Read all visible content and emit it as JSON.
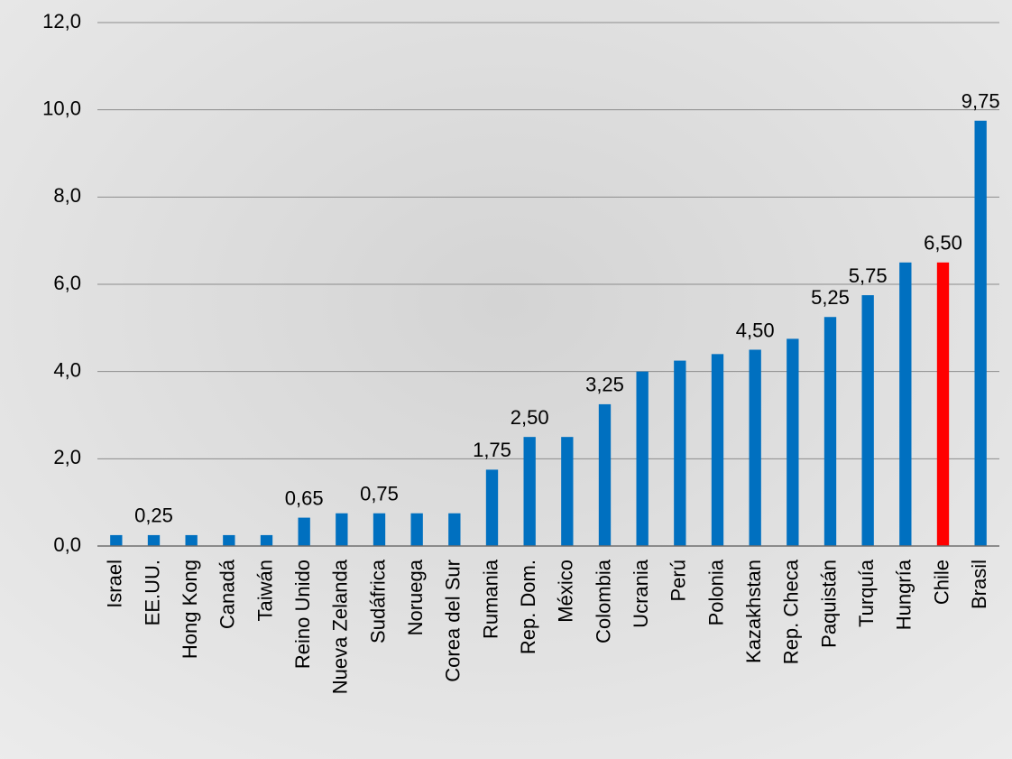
{
  "chart_data": {
    "type": "bar",
    "categories": [
      "Israel",
      "EE.UU.",
      "Hong Kong",
      "Canadá",
      "Taiwán",
      "Reino Unido",
      "Nueva Zelanda",
      "Sudáfrica",
      "Noruega",
      "Corea del Sur",
      "Rumania",
      "Rep. Dom.",
      "México",
      "Colombia",
      "Ucrania",
      "Perú",
      "Polonia",
      "Kazakhstan",
      "Rep. Checa",
      "Paquistán",
      "Turquía",
      "Hungría",
      "Chile",
      "Brasil"
    ],
    "values": [
      0.25,
      0.25,
      0.25,
      0.25,
      0.25,
      0.65,
      0.75,
      0.75,
      0.75,
      0.75,
      1.75,
      2.5,
      2.5,
      3.25,
      4.0,
      4.25,
      4.4,
      4.5,
      4.75,
      5.25,
      5.75,
      6.5,
      6.5,
      9.75
    ],
    "value_labels": [
      null,
      "0,25",
      null,
      null,
      null,
      "0,65",
      null,
      "0,75",
      null,
      null,
      "1,75",
      "2,50",
      null,
      "3,25",
      null,
      null,
      null,
      "4,50",
      null,
      "5,25",
      "5,75",
      null,
      "6,50",
      "9,75"
    ],
    "colors": [
      "#0070c0",
      "#0070c0",
      "#0070c0",
      "#0070c0",
      "#0070c0",
      "#0070c0",
      "#0070c0",
      "#0070c0",
      "#0070c0",
      "#0070c0",
      "#0070c0",
      "#0070c0",
      "#0070c0",
      "#0070c0",
      "#0070c0",
      "#0070c0",
      "#0070c0",
      "#0070c0",
      "#0070c0",
      "#0070c0",
      "#0070c0",
      "#0070c0",
      "#ff0000",
      "#0070c0"
    ],
    "ylim": [
      0,
      12
    ],
    "yticks": [
      {
        "value": 0,
        "label": "0,0"
      },
      {
        "value": 2,
        "label": "2,0"
      },
      {
        "value": 4,
        "label": "4,0"
      },
      {
        "value": 6,
        "label": "6,0"
      },
      {
        "value": 8,
        "label": "8,0"
      },
      {
        "value": 10,
        "label": "10,0"
      },
      {
        "value": 12,
        "label": "12,0"
      }
    ],
    "grid": true
  }
}
